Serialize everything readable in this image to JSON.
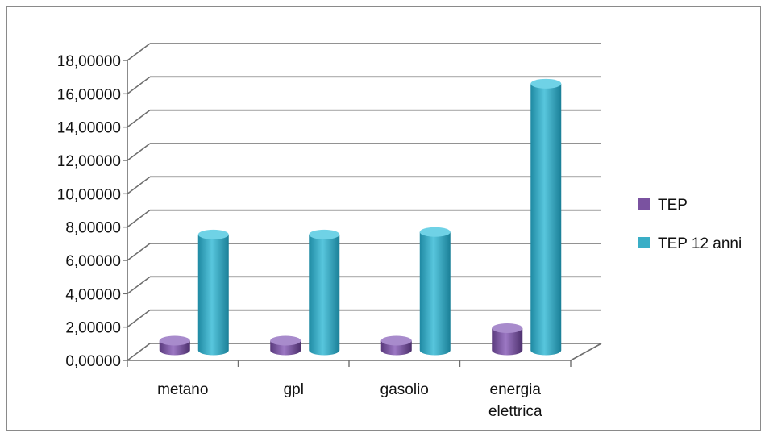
{
  "chart_data": {
    "type": "bar",
    "title": "",
    "xlabel": "",
    "ylabel": "",
    "categories": [
      "metano",
      "gpl",
      "gasolio",
      "energia elettrica"
    ],
    "category_lines": [
      [
        "metano"
      ],
      [
        "gpl"
      ],
      [
        "gasolio"
      ],
      [
        "energia",
        "elettrica"
      ]
    ],
    "series": [
      {
        "name": "TEP",
        "values": [
          0.58,
          0.58,
          0.58,
          1.33
        ],
        "color": "#7a52a0"
      },
      {
        "name": "TEP 12 anni",
        "values": [
          6.95,
          6.95,
          7.1,
          16.0
        ],
        "color": "#3aaec6"
      }
    ],
    "ylim": [
      0,
      18
    ],
    "yticks": [
      "0,00000",
      "2,00000",
      "4,00000",
      "6,00000",
      "8,00000",
      "10,00000",
      "12,00000",
      "14,00000",
      "16,00000",
      "18,00000"
    ],
    "grid": true,
    "legend_position": "right",
    "style": "3d-cylinder"
  }
}
